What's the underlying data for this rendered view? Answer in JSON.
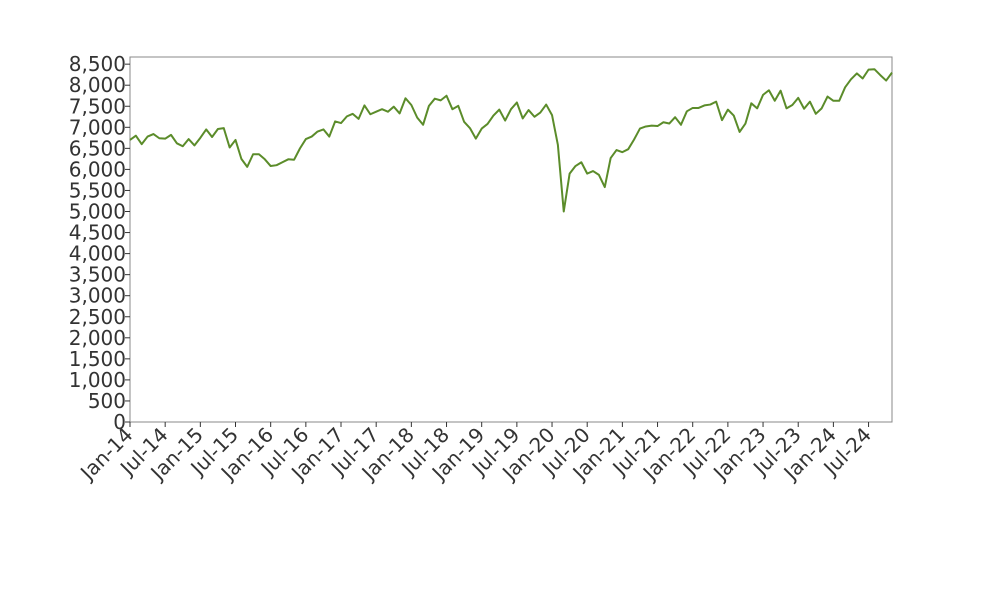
{
  "chart_data": {
    "type": "line",
    "x": [
      "2014-01",
      "2014-02",
      "2014-03",
      "2014-04",
      "2014-05",
      "2014-06",
      "2014-07",
      "2014-08",
      "2014-09",
      "2014-10",
      "2014-11",
      "2014-12",
      "2015-01",
      "2015-02",
      "2015-03",
      "2015-04",
      "2015-05",
      "2015-06",
      "2015-07",
      "2015-08",
      "2015-09",
      "2015-10",
      "2015-11",
      "2015-12",
      "2016-01",
      "2016-02",
      "2016-03",
      "2016-04",
      "2016-05",
      "2016-06",
      "2016-07",
      "2016-08",
      "2016-09",
      "2016-10",
      "2016-11",
      "2016-12",
      "2017-01",
      "2017-02",
      "2017-03",
      "2017-04",
      "2017-05",
      "2017-06",
      "2017-07",
      "2017-08",
      "2017-09",
      "2017-10",
      "2017-11",
      "2017-12",
      "2018-01",
      "2018-02",
      "2018-03",
      "2018-04",
      "2018-05",
      "2018-06",
      "2018-07",
      "2018-08",
      "2018-09",
      "2018-10",
      "2018-11",
      "2018-12",
      "2019-01",
      "2019-02",
      "2019-03",
      "2019-04",
      "2019-05",
      "2019-06",
      "2019-07",
      "2019-08",
      "2019-09",
      "2019-10",
      "2019-11",
      "2019-12",
      "2020-01",
      "2020-02",
      "2020-03",
      "2020-04",
      "2020-05",
      "2020-06",
      "2020-07",
      "2020-08",
      "2020-09",
      "2020-10",
      "2020-11",
      "2020-12",
      "2021-01",
      "2021-02",
      "2021-03",
      "2021-04",
      "2021-05",
      "2021-06",
      "2021-07",
      "2021-08",
      "2021-09",
      "2021-10",
      "2021-11",
      "2021-12",
      "2022-01",
      "2022-02",
      "2022-03",
      "2022-04",
      "2022-05",
      "2022-06",
      "2022-07",
      "2022-08",
      "2022-09",
      "2022-10",
      "2022-11",
      "2022-12",
      "2023-01",
      "2023-02",
      "2023-03",
      "2023-04",
      "2023-05",
      "2023-06",
      "2023-07",
      "2023-08",
      "2023-09",
      "2023-10",
      "2023-11",
      "2023-12",
      "2024-01",
      "2024-02",
      "2024-03",
      "2024-04",
      "2024-05",
      "2024-06",
      "2024-07",
      "2024-08",
      "2024-09",
      "2024-10",
      "2024-11"
    ],
    "series": [
      {
        "color": "#5b8c2a",
        "values": [
          6700,
          6800,
          6600,
          6780,
          6840,
          6740,
          6730,
          6820,
          6620,
          6550,
          6720,
          6570,
          6750,
          6950,
          6770,
          6960,
          6980,
          6520,
          6700,
          6250,
          6060,
          6360,
          6360,
          6240,
          6080,
          6100,
          6170,
          6240,
          6230,
          6500,
          6720,
          6780,
          6900,
          6950,
          6780,
          7140,
          7100,
          7260,
          7320,
          7200,
          7520,
          7310,
          7370,
          7430,
          7370,
          7490,
          7330,
          7690,
          7530,
          7230,
          7060,
          7510,
          7680,
          7640,
          7750,
          7430,
          7510,
          7130,
          6980,
          6730,
          6970,
          7080,
          7280,
          7420,
          7160,
          7430,
          7590,
          7210,
          7410,
          7250,
          7350,
          7540,
          7290,
          6580,
          5000,
          5900,
          6080,
          6170,
          5900,
          5960,
          5870,
          5580,
          6270,
          6460,
          6410,
          6480,
          6710,
          6970,
          7020,
          7040,
          7030,
          7120,
          7090,
          7240,
          7060,
          7380,
          7460,
          7460,
          7520,
          7540,
          7610,
          7170,
          7420,
          7280,
          6890,
          7090,
          7570,
          7450,
          7770,
          7880,
          7630,
          7870,
          7450,
          7530,
          7700,
          7440,
          7610,
          7320,
          7450,
          7730,
          7630,
          7630,
          7950,
          8140,
          8280,
          8160,
          8370,
          8380,
          8240,
          8110,
          8300
        ]
      }
    ],
    "xlim": [
      "2014-01",
      "2024-11"
    ],
    "xticks": [
      {
        "value": "2014-01",
        "label": "Jan-14"
      },
      {
        "value": "2014-07",
        "label": "Jul-14"
      },
      {
        "value": "2015-01",
        "label": "Jan-15"
      },
      {
        "value": "2015-07",
        "label": "Jul-15"
      },
      {
        "value": "2016-01",
        "label": "Jan-16"
      },
      {
        "value": "2016-07",
        "label": "Jul-16"
      },
      {
        "value": "2017-01",
        "label": "Jan-17"
      },
      {
        "value": "2017-07",
        "label": "Jul-17"
      },
      {
        "value": "2018-01",
        "label": "Jan-18"
      },
      {
        "value": "2018-07",
        "label": "Jul-18"
      },
      {
        "value": "2019-01",
        "label": "Jan-19"
      },
      {
        "value": "2019-07",
        "label": "Jul-19"
      },
      {
        "value": "2020-01",
        "label": "Jan-20"
      },
      {
        "value": "2020-07",
        "label": "Jul-20"
      },
      {
        "value": "2021-01",
        "label": "Jan-21"
      },
      {
        "value": "2021-07",
        "label": "Jul-21"
      },
      {
        "value": "2022-01",
        "label": "Jan-22"
      },
      {
        "value": "2022-07",
        "label": "Jul-22"
      },
      {
        "value": "2023-01",
        "label": "Jan-23"
      },
      {
        "value": "2023-07",
        "label": "Jul-23"
      },
      {
        "value": "2024-01",
        "label": "Jan-24"
      },
      {
        "value": "2024-07",
        "label": "Jul-24"
      }
    ],
    "ylim": [
      0,
      8670
    ],
    "yticks": [
      0,
      500,
      {
        "value": 1000,
        "label": "1,000"
      },
      {
        "value": 1500,
        "label": "1,500"
      },
      {
        "value": 2000,
        "label": "2,000"
      },
      {
        "value": 2500,
        "label": "2,500"
      },
      {
        "value": 3000,
        "label": "3,000"
      },
      {
        "value": 3500,
        "label": "3,500"
      },
      {
        "value": 4000,
        "label": "4,000"
      },
      {
        "value": 4500,
        "label": "4,500"
      },
      {
        "value": 5000,
        "label": "5,000"
      },
      {
        "value": 5500,
        "label": "5,500"
      },
      {
        "value": 6000,
        "label": "6,000"
      },
      {
        "value": 6500,
        "label": "6,500"
      },
      {
        "value": 7000,
        "label": "7,000"
      },
      {
        "value": 7500,
        "label": "7,500"
      },
      {
        "value": 8000,
        "label": "8,000"
      },
      {
        "value": 8500,
        "label": "8,500"
      }
    ],
    "grid": false
  }
}
